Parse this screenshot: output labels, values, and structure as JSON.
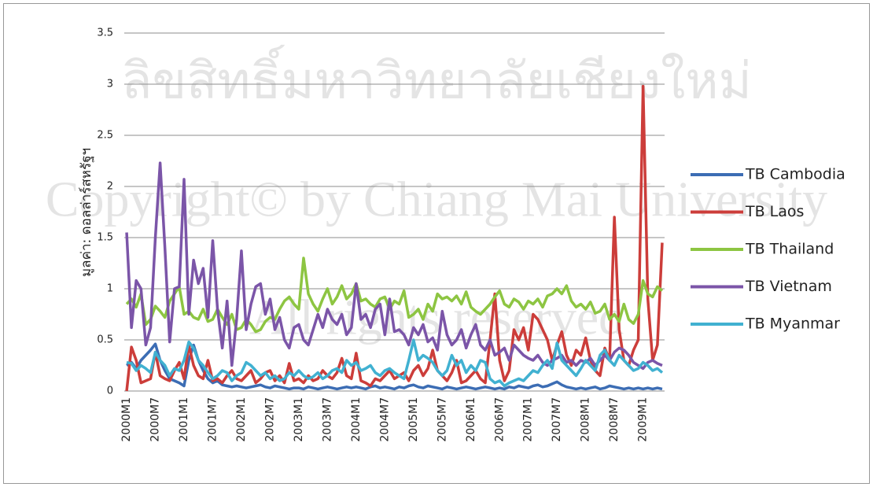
{
  "chart_data": {
    "type": "line",
    "y_label": "มูลค่า: ดอลล่าร์สหรัฐฯ",
    "watermark": [
      "ลิขสิทธิ์มหาวิทยาลัยเชียงใหม่",
      "Copyright© by Chiang Mai University",
      "All rights reserved"
    ],
    "categories": [
      "2000M1",
      null,
      null,
      null,
      null,
      null,
      "2000M7",
      null,
      null,
      null,
      null,
      null,
      "2001M1",
      null,
      null,
      null,
      null,
      null,
      "2001M7",
      null,
      null,
      null,
      null,
      null,
      "2002M1",
      null,
      null,
      null,
      null,
      null,
      "2002M7",
      null,
      null,
      null,
      null,
      null,
      "2003M1",
      null,
      null,
      null,
      null,
      null,
      "2003M7",
      null,
      null,
      null,
      null,
      null,
      "2004M1",
      null,
      null,
      null,
      null,
      null,
      "2004M7",
      null,
      null,
      null,
      null,
      null,
      "2005M1",
      null,
      null,
      null,
      null,
      null,
      "2005M7",
      null,
      null,
      null,
      null,
      null,
      "2006M1",
      null,
      null,
      null,
      null,
      null,
      "2006M7",
      null,
      null,
      null,
      null,
      null,
      "2007M1",
      null,
      null,
      null,
      null,
      null,
      "2007M7",
      null,
      null,
      null,
      null,
      null,
      "2008M1",
      null,
      null,
      null,
      null,
      null,
      "2008M7",
      null,
      null,
      null,
      null,
      null,
      "2009M1",
      null,
      null,
      null,
      null
    ],
    "series": [
      {
        "name": "TB Cambodia",
        "color": "#3c6db4",
        "values": [
          0.25,
          0.28,
          0.22,
          0.3,
          0.35,
          0.4,
          0.46,
          0.3,
          0.2,
          0.12,
          0.1,
          0.08,
          0.05,
          0.3,
          0.45,
          0.3,
          0.2,
          0.12,
          0.08,
          0.1,
          0.06,
          0.05,
          0.04,
          0.05,
          0.04,
          0.03,
          0.04,
          0.05,
          0.06,
          0.04,
          0.03,
          0.05,
          0.04,
          0.03,
          0.02,
          0.03,
          0.03,
          0.02,
          0.04,
          0.03,
          0.02,
          0.03,
          0.04,
          0.03,
          0.02,
          0.03,
          0.04,
          0.03,
          0.04,
          0.03,
          0.02,
          0.04,
          0.05,
          0.03,
          0.04,
          0.03,
          0.02,
          0.04,
          0.03,
          0.05,
          0.06,
          0.04,
          0.03,
          0.05,
          0.04,
          0.03,
          0.02,
          0.04,
          0.03,
          0.02,
          0.03,
          0.04,
          0.03,
          0.02,
          0.03,
          0.04,
          0.03,
          0.02,
          0.03,
          0.02,
          0.04,
          0.03,
          0.05,
          0.04,
          0.03,
          0.05,
          0.06,
          0.04,
          0.05,
          0.07,
          0.09,
          0.06,
          0.04,
          0.03,
          0.02,
          0.03,
          0.02,
          0.03,
          0.04,
          0.02,
          0.03,
          0.05,
          0.04,
          0.03,
          0.02,
          0.03,
          0.02,
          0.03,
          0.02,
          0.03,
          0.02,
          0.03,
          0.02
        ]
      },
      {
        "name": "TB Laos",
        "color": "#cc3d3a",
        "values": [
          0,
          0.43,
          0.3,
          0.08,
          0.1,
          0.12,
          0.38,
          0.15,
          0.12,
          0.1,
          0.2,
          0.28,
          0.12,
          0.45,
          0.25,
          0.15,
          0.12,
          0.3,
          0.1,
          0.12,
          0.08,
          0.15,
          0.2,
          0.12,
          0.1,
          0.15,
          0.2,
          0.08,
          0.12,
          0.18,
          0.2,
          0.1,
          0.15,
          0.08,
          0.27,
          0.1,
          0.12,
          0.08,
          0.15,
          0.1,
          0.12,
          0.2,
          0.15,
          0.12,
          0.18,
          0.32,
          0.15,
          0.12,
          0.37,
          0.1,
          0.08,
          0.05,
          0.12,
          0.1,
          0.15,
          0.2,
          0.12,
          0.15,
          0.18,
          0.1,
          0.2,
          0.25,
          0.15,
          0.22,
          0.4,
          0.2,
          0.15,
          0.1,
          0.18,
          0.3,
          0.08,
          0.1,
          0.15,
          0.2,
          0.12,
          0.08,
          0.5,
          0.95,
          0.3,
          0.1,
          0.2,
          0.6,
          0.5,
          0.62,
          0.4,
          0.75,
          0.7,
          0.6,
          0.5,
          0.3,
          0.45,
          0.58,
          0.35,
          0.25,
          0.4,
          0.35,
          0.52,
          0.3,
          0.2,
          0.15,
          0.42,
          0.3,
          1.7,
          0.6,
          0.3,
          0.25,
          0.4,
          0.5,
          2.98,
          0.9,
          0.3,
          0.45,
          1.45
        ]
      },
      {
        "name": "TB Thailand",
        "color": "#8dc542",
        "values": [
          0.85,
          0.9,
          0.82,
          0.95,
          0.65,
          0.7,
          0.83,
          0.78,
          0.72,
          0.88,
          0.95,
          1.02,
          0.75,
          0.78,
          0.72,
          0.7,
          0.8,
          0.68,
          0.7,
          0.8,
          0.72,
          0.65,
          0.75,
          0.6,
          0.62,
          0.7,
          0.65,
          0.58,
          0.6,
          0.68,
          0.72,
          0.7,
          0.8,
          0.88,
          0.92,
          0.85,
          0.8,
          1.3,
          0.95,
          0.85,
          0.78,
          0.9,
          1.0,
          0.85,
          0.92,
          1.03,
          0.9,
          0.95,
          1.05,
          0.88,
          0.9,
          0.85,
          0.82,
          0.9,
          0.92,
          0.8,
          0.88,
          0.85,
          0.98,
          0.72,
          0.75,
          0.8,
          0.7,
          0.85,
          0.78,
          0.95,
          0.9,
          0.92,
          0.88,
          0.93,
          0.85,
          0.97,
          0.82,
          0.78,
          0.75,
          0.8,
          0.85,
          0.92,
          0.98,
          0.85,
          0.82,
          0.9,
          0.87,
          0.8,
          0.88,
          0.85,
          0.9,
          0.82,
          0.93,
          0.95,
          1.0,
          0.95,
          1.03,
          0.88,
          0.82,
          0.85,
          0.8,
          0.87,
          0.76,
          0.78,
          0.85,
          0.7,
          0.75,
          0.68,
          0.85,
          0.7,
          0.66,
          0.75,
          1.08,
          0.95,
          0.92,
          1.02,
          0.98
        ]
      },
      {
        "name": "TB Vietnam",
        "color": "#7b55a8",
        "values": [
          1.55,
          0.62,
          1.08,
          1.0,
          0.45,
          0.62,
          1.5,
          2.23,
          1.4,
          0.48,
          1.0,
          1.02,
          2.07,
          0.75,
          1.28,
          1.05,
          1.2,
          0.72,
          1.47,
          0.8,
          0.42,
          0.88,
          0.25,
          0.7,
          1.37,
          0.6,
          0.85,
          1.02,
          1.05,
          0.75,
          0.9,
          0.6,
          0.72,
          0.5,
          0.42,
          0.62,
          0.65,
          0.5,
          0.45,
          0.6,
          0.75,
          0.62,
          0.8,
          0.7,
          0.65,
          0.75,
          0.55,
          0.62,
          1.05,
          0.7,
          0.75,
          0.62,
          0.8,
          0.85,
          0.55,
          0.9,
          0.58,
          0.6,
          0.55,
          0.45,
          0.62,
          0.55,
          0.65,
          0.48,
          0.52,
          0.4,
          0.78,
          0.55,
          0.45,
          0.5,
          0.6,
          0.42,
          0.55,
          0.65,
          0.45,
          0.4,
          0.5,
          0.35,
          0.38,
          0.42,
          0.3,
          0.45,
          0.4,
          0.35,
          0.32,
          0.3,
          0.35,
          0.28,
          0.25,
          0.3,
          0.32,
          0.35,
          0.28,
          0.3,
          0.25,
          0.3,
          0.28,
          0.32,
          0.25,
          0.3,
          0.35,
          0.3,
          0.38,
          0.42,
          0.4,
          0.35,
          0.28,
          0.25,
          0.22,
          0.28,
          0.3,
          0.27,
          0.25
        ]
      },
      {
        "name": "TB Myanmar",
        "color": "#41b1d1",
        "values": [
          0.28,
          0.27,
          0.2,
          0.25,
          0.22,
          0.18,
          0.38,
          0.3,
          0.25,
          0.15,
          0.22,
          0.2,
          0.3,
          0.48,
          0.42,
          0.3,
          0.25,
          0.18,
          0.12,
          0.15,
          0.2,
          0.18,
          0.1,
          0.15,
          0.18,
          0.28,
          0.25,
          0.2,
          0.15,
          0.18,
          0.12,
          0.15,
          0.1,
          0.12,
          0.18,
          0.15,
          0.2,
          0.15,
          0.12,
          0.14,
          0.18,
          0.12,
          0.15,
          0.2,
          0.22,
          0.18,
          0.3,
          0.25,
          0.28,
          0.2,
          0.22,
          0.25,
          0.18,
          0.15,
          0.2,
          0.22,
          0.18,
          0.15,
          0.12,
          0.3,
          0.5,
          0.3,
          0.35,
          0.32,
          0.28,
          0.2,
          0.15,
          0.2,
          0.35,
          0.25,
          0.3,
          0.18,
          0.25,
          0.2,
          0.3,
          0.28,
          0.12,
          0.08,
          0.1,
          0.05,
          0.08,
          0.1,
          0.12,
          0.1,
          0.15,
          0.2,
          0.18,
          0.25,
          0.3,
          0.22,
          0.47,
          0.3,
          0.25,
          0.2,
          0.15,
          0.22,
          0.3,
          0.25,
          0.2,
          0.35,
          0.4,
          0.3,
          0.25,
          0.35,
          0.3,
          0.25,
          0.2,
          0.22,
          0.28,
          0.25,
          0.2,
          0.22,
          0.18
        ]
      }
    ],
    "ylim": [
      0,
      3.5
    ],
    "yticks": [
      0,
      0.5,
      1,
      1.5,
      2,
      2.5,
      3,
      3.5
    ],
    "grid": true,
    "legend": "right"
  }
}
